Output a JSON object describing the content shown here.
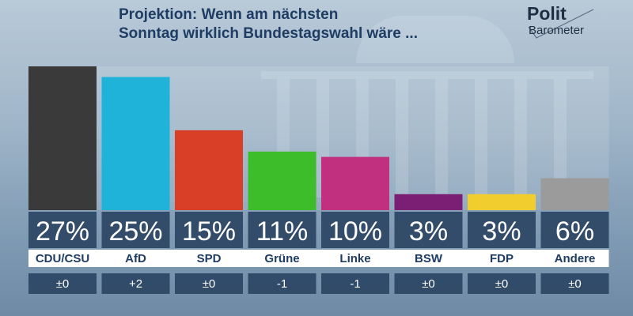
{
  "title": {
    "line1": "Projektion: Wenn am nächsten",
    "line2": "Sonntag wirklich Bundestagswahl wäre ..."
  },
  "logo": {
    "line1": "Polit",
    "line2": "Barometer"
  },
  "colors": {
    "CDU/CSU": "#3a3a3a",
    "AfD": "#1fb3d9",
    "SPD": "#d93e26",
    "Grüne": "#3dbd2a",
    "Linke": "#c1307e",
    "BSW": "#7b1f75",
    "FDP": "#f2cd2e",
    "Andere": "#9b9b9b"
  },
  "chart_data": {
    "type": "bar",
    "title": "Projektion: Wenn am nächsten Sonntag wirklich Bundestagswahl wäre ...",
    "categories": [
      "CDU/CSU",
      "AfD",
      "SPD",
      "Grüne",
      "Linke",
      "BSW",
      "FDP",
      "Andere"
    ],
    "values": [
      27,
      25,
      15,
      11,
      10,
      3,
      3,
      6
    ],
    "value_labels": [
      "27%",
      "25%",
      "15%",
      "11%",
      "10%",
      "3%",
      "3%",
      "6%"
    ],
    "changes": [
      "±0",
      "+2",
      "±0",
      "-1",
      "-1",
      "±0",
      "±0",
      "±0"
    ],
    "ylim": [
      0,
      27
    ],
    "xlabel": "",
    "ylabel": ""
  }
}
